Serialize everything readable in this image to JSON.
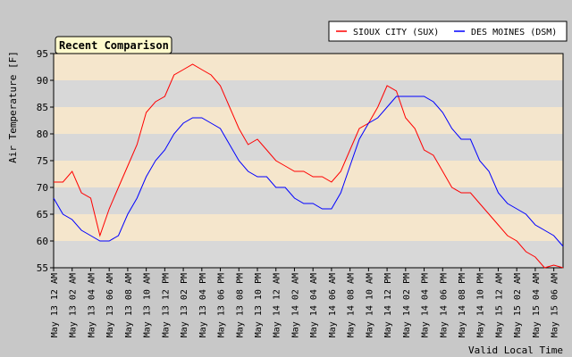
{
  "chart_data": {
    "type": "line",
    "title": "Recent Comparison",
    "ylabel": "Air Temperature [F]",
    "xlabel": "Valid Local Time",
    "ylim": [
      55,
      95
    ],
    "yticks": [
      55,
      60,
      65,
      70,
      75,
      80,
      85,
      90,
      95
    ],
    "xlim": [
      0,
      55
    ],
    "xtick_labels": [
      "May 13 12 AM",
      "May 13 02 AM",
      "May 13 04 AM",
      "May 13 06 AM",
      "May 13 08 AM",
      "May 13 10 AM",
      "May 13 12 PM",
      "May 13 02 PM",
      "May 13 04 PM",
      "May 13 06 PM",
      "May 13 08 PM",
      "May 13 10 PM",
      "May 14 12 AM",
      "May 14 02 AM",
      "May 14 04 AM",
      "May 14 06 AM",
      "May 14 08 AM",
      "May 14 10 AM",
      "May 14 12 PM",
      "May 14 02 PM",
      "May 14 04 PM",
      "May 14 06 PM",
      "May 14 08 PM",
      "May 14 10 PM",
      "May 15 12 AM",
      "May 15 02 AM",
      "May 15 04 AM",
      "May 15 06 AM"
    ],
    "legend_position": "top-right",
    "grid": "horizontal alternating bands",
    "colors": {
      "band_a": "#d8d8d8",
      "band_b": "#f5e6cc",
      "title_box": "#fffacd"
    },
    "series": [
      {
        "name": "SIOUX CITY (SUX)",
        "color": "#ff0000",
        "x": [
          0,
          1,
          2,
          3,
          4,
          5,
          6,
          7,
          8,
          9,
          10,
          11,
          12,
          13,
          14,
          15,
          16,
          17,
          18,
          19,
          20,
          21,
          22,
          23,
          24,
          25,
          26,
          27,
          28,
          29,
          30,
          31,
          32,
          33,
          34,
          35,
          36,
          37,
          38,
          39,
          40,
          41,
          42,
          43,
          44,
          45,
          46,
          47,
          48,
          49,
          50,
          51,
          52,
          53,
          54,
          55
        ],
        "values": [
          71,
          71,
          73,
          69,
          68,
          61,
          66,
          70,
          74,
          78,
          84,
          86,
          87,
          91,
          92,
          93,
          92,
          91,
          89,
          85,
          81,
          78,
          79,
          77,
          75,
          74,
          73,
          73,
          72,
          72,
          71,
          73,
          77,
          81,
          82,
          85,
          89,
          88,
          83,
          81,
          77,
          76,
          73,
          70,
          69,
          69,
          67,
          65,
          63,
          61,
          60,
          58,
          57,
          55,
          55.5,
          55
        ]
      },
      {
        "name": "DES MOINES (DSM)",
        "color": "#0000ff",
        "x": [
          0,
          1,
          2,
          3,
          4,
          5,
          6,
          7,
          8,
          9,
          10,
          11,
          12,
          13,
          14,
          15,
          16,
          17,
          18,
          19,
          20,
          21,
          22,
          23,
          24,
          25,
          26,
          27,
          28,
          29,
          30,
          31,
          32,
          33,
          34,
          35,
          36,
          37,
          38,
          39,
          40,
          41,
          42,
          43,
          44,
          45,
          46,
          47,
          48,
          49,
          50,
          51,
          52,
          53,
          54,
          55
        ],
        "values": [
          68,
          65,
          64,
          62,
          61,
          60,
          60,
          61,
          65,
          68,
          72,
          75,
          77,
          80,
          82,
          83,
          83,
          82,
          81,
          78,
          75,
          73,
          72,
          72,
          70,
          70,
          68,
          67,
          67,
          66,
          66,
          69,
          74,
          79,
          82,
          83,
          85,
          87,
          87,
          87,
          87,
          86,
          84,
          81,
          79,
          79,
          75,
          73,
          69,
          67,
          66,
          65,
          63,
          62,
          61,
          59
        ]
      }
    ]
  }
}
